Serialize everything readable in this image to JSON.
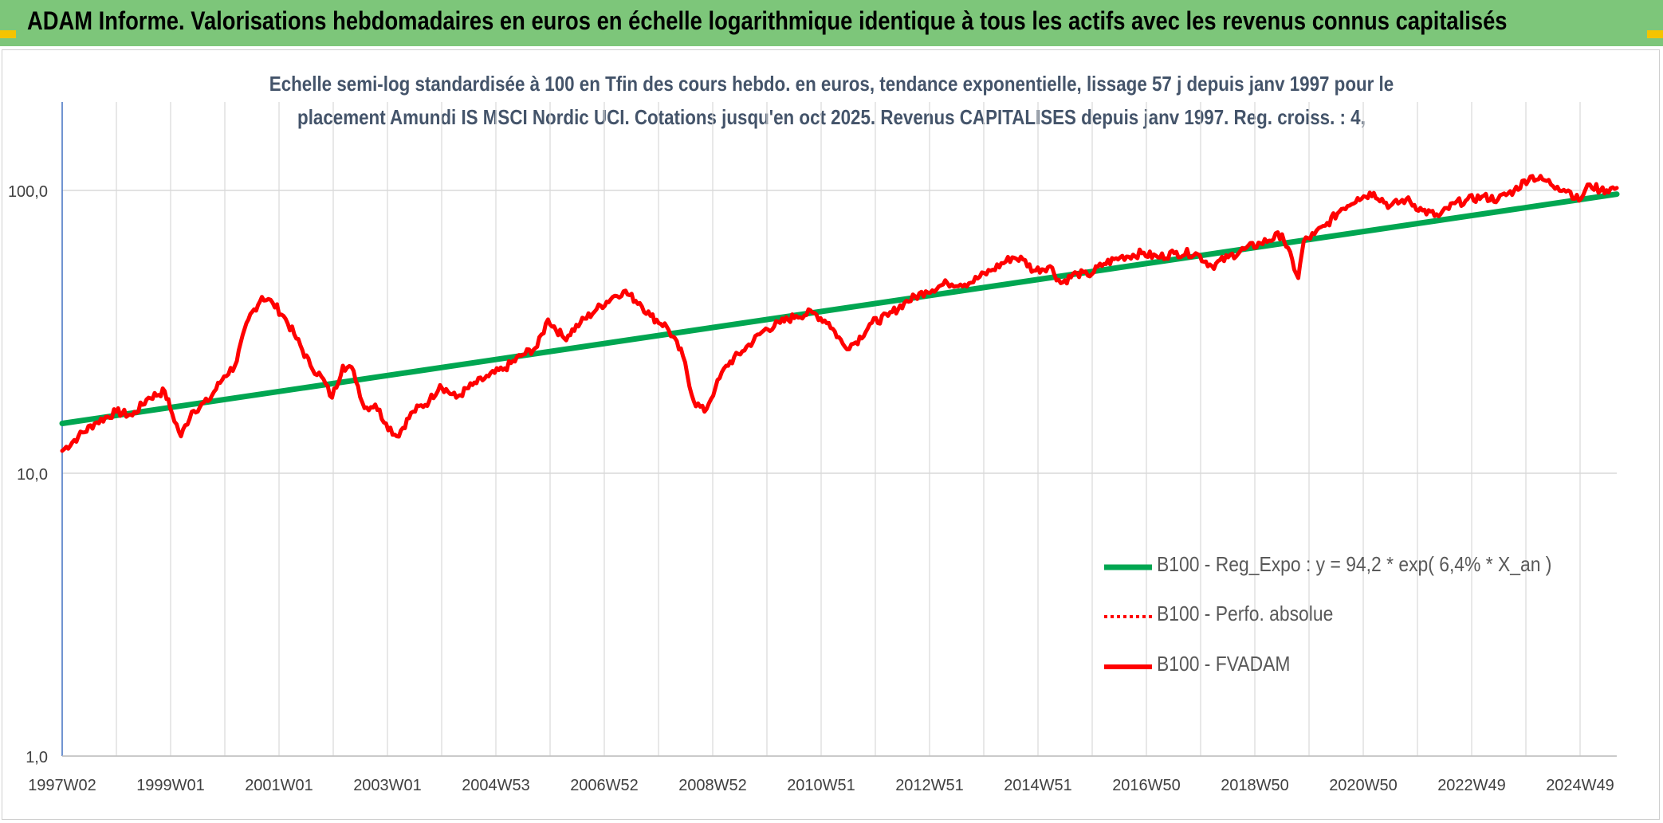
{
  "header": {
    "title": "ADAM Informe. Valorisations hebdomadaires en euros en échelle logarithmique identique à tous les actifs avec les revenus connus capitalisés"
  },
  "colors": {
    "header_bg": "#7dc67a",
    "corner_accent": "#f5c400",
    "trend_line": "#00a651",
    "fvadam_line": "#ff0000",
    "perfo_line": "#ff0000",
    "subtitle_text": "#44546a"
  },
  "chart_data": {
    "type": "line",
    "title_line1": "Echelle semi-log standardisée à 100 en Tfin des cours hebdo. en euros, tendance exponentielle, lissage 57 j depuis janv 1997 pour le",
    "title_line2": "placement Amundi IS MSCI Nordic UCI. Cotations jusqu'en oct 2025. Revenus CAPITALISES depuis janv 1997. Reg. croiss. : 4,",
    "y_scale": "log",
    "ylim": [
      1,
      180
    ],
    "y_ticks": [
      {
        "value": 1,
        "label": "1,0"
      },
      {
        "value": 10,
        "label": "10,0"
      },
      {
        "value": 100,
        "label": "100,0"
      }
    ],
    "x_tick_labels": [
      "1997W02",
      "1999W01",
      "2001W01",
      "2003W01",
      "2004W53",
      "2006W52",
      "2008W52",
      "2010W51",
      "2012W51",
      "2014W51",
      "2016W50",
      "2018W50",
      "2020W50",
      "2022W49",
      "2024W49"
    ],
    "x_range_years": [
      1997.0,
      2025.8
    ],
    "grid": true,
    "legend_position": "bottom-right",
    "series": [
      {
        "name": "B100 - Reg_Expo : y = 94,2 * exp( 6,4% *  X_an )",
        "style": "solid-thick",
        "color": "#00a651",
        "x": [
          1997.0,
          2025.8
        ],
        "values": [
          15.0,
          97.0
        ]
      },
      {
        "name": "B100 - Perfo. absolue",
        "style": "dotted",
        "color": "#ff0000",
        "x": [],
        "values": []
      },
      {
        "name": "B100 - FVADAM",
        "style": "solid",
        "color": "#ff0000",
        "x": [
          1997.0,
          1997.3,
          1997.6,
          1998.0,
          1998.3,
          1998.6,
          1998.9,
          1999.0,
          1999.2,
          1999.4,
          1999.7,
          2000.0,
          2000.2,
          2000.45,
          2000.7,
          2000.9,
          2001.1,
          2001.3,
          2001.6,
          2001.8,
          2002.0,
          2002.2,
          2002.4,
          2002.6,
          2002.8,
          2003.0,
          2003.2,
          2003.5,
          2003.8,
          2004.0,
          2004.3,
          2004.6,
          2004.9,
          2005.2,
          2005.5,
          2005.8,
          2006.0,
          2006.3,
          2006.6,
          2006.9,
          2007.2,
          2007.4,
          2007.7,
          2007.9,
          2008.2,
          2008.5,
          2008.7,
          2008.9,
          2009.1,
          2009.3,
          2009.6,
          2010.0,
          2010.3,
          2010.6,
          2010.9,
          2011.2,
          2011.5,
          2011.7,
          2012.0,
          2012.3,
          2012.6,
          2013.0,
          2013.4,
          2013.8,
          2014.2,
          2014.6,
          2014.8,
          2015.0,
          2015.3,
          2015.5,
          2015.8,
          2016.0,
          2016.3,
          2016.6,
          2017.0,
          2017.3,
          2017.6,
          2018.0,
          2018.3,
          2018.6,
          2018.9,
          2019.2,
          2019.6,
          2019.9,
          2020.0,
          2020.2,
          2020.4,
          2020.7,
          2021.0,
          2021.3,
          2021.6,
          2021.9,
          2022.2,
          2022.5,
          2022.8,
          2023.0,
          2023.3,
          2023.6,
          2023.9,
          2024.2,
          2024.5,
          2024.7,
          2024.9,
          2025.1,
          2025.3,
          2025.5,
          2025.8
        ],
        "values": [
          12.0,
          13.5,
          15.0,
          16.5,
          16.0,
          18.5,
          19.5,
          17.0,
          13.5,
          16.5,
          18.0,
          22.0,
          24.0,
          35.0,
          42.0,
          40.0,
          36.0,
          31.0,
          24.0,
          22.0,
          18.5,
          24.0,
          23.0,
          17.0,
          17.5,
          15.0,
          13.5,
          16.5,
          18.0,
          20.5,
          18.5,
          20.5,
          22.0,
          23.5,
          26.0,
          28.0,
          35.0,
          30.0,
          34.0,
          38.0,
          42.0,
          44.0,
          40.0,
          36.0,
          33.0,
          26.0,
          18.0,
          16.5,
          20.0,
          24.0,
          27.0,
          32.0,
          34.0,
          36.0,
          37.0,
          34.0,
          28.0,
          29.0,
          34.0,
          36.0,
          40.0,
          44.0,
          47.0,
          47.0,
          52.0,
          58.0,
          57.0,
          52.0,
          54.0,
          47.0,
          51.0,
          50.0,
          55.0,
          58.0,
          60.0,
          58.0,
          60.0,
          60.0,
          54.0,
          58.0,
          62.0,
          65.0,
          70.0,
          49.0,
          66.0,
          70.0,
          75.0,
          86.0,
          94.0,
          98.0,
          88.0,
          93.0,
          85.0,
          81.0,
          90.0,
          92.0,
          95.0,
          93.0,
          100.0,
          112.0,
          108.0,
          103.0,
          100.0,
          92.0,
          105.0,
          100.0,
          102.0
        ]
      }
    ]
  }
}
